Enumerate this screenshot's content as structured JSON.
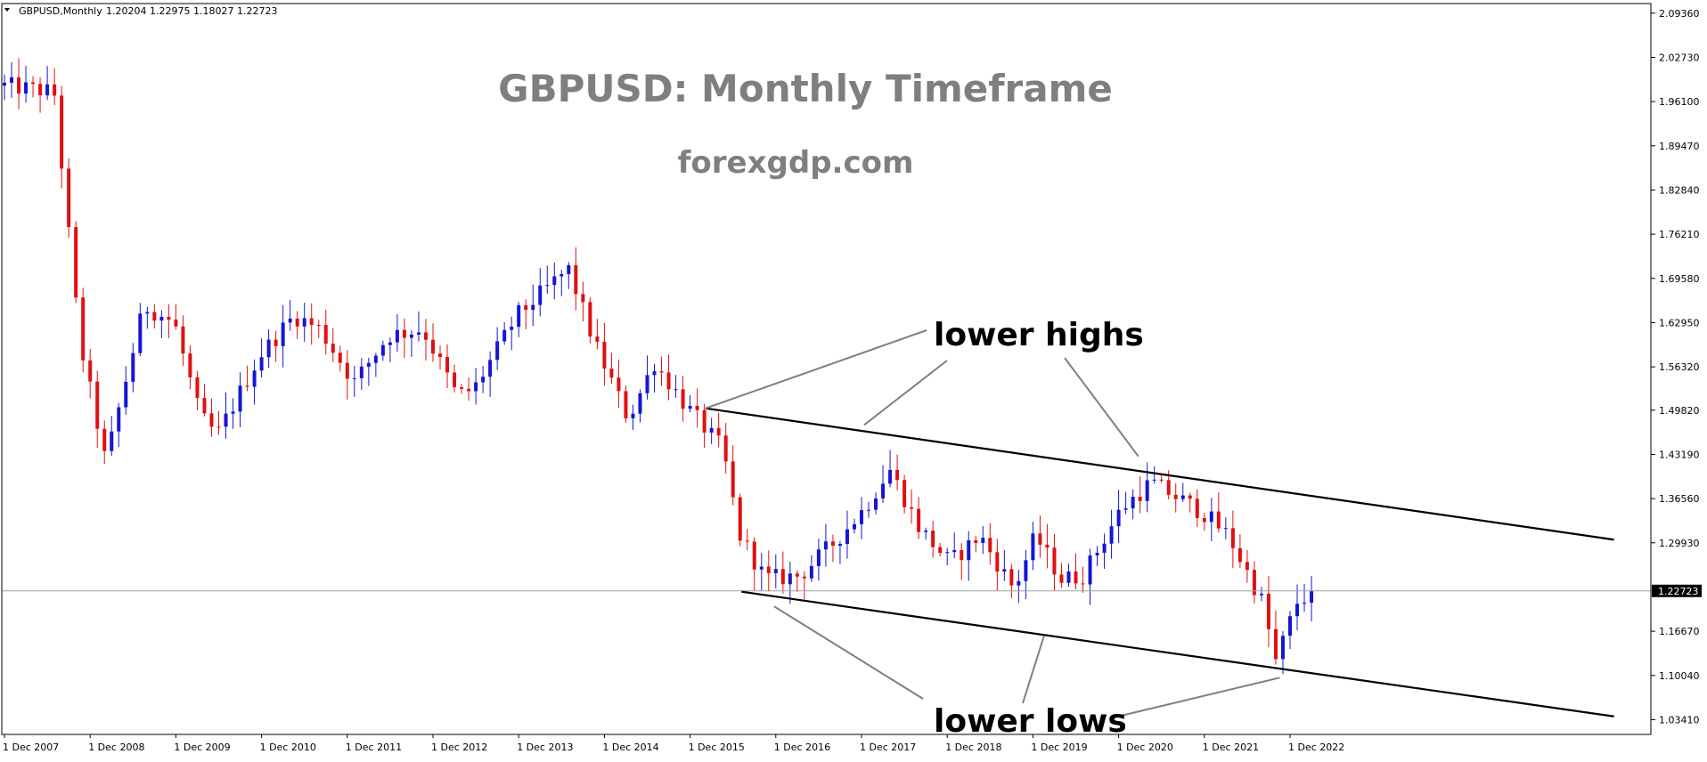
{
  "header": {
    "symbol": "GBPUSD,Monthly",
    "ohlc": "1.20204 1.22975 1.18027 1.22723",
    "menu_icon": "triangle-down-icon"
  },
  "chart_data": {
    "type": "candlestick",
    "title": "GBPUSD: Monthly Timeframe",
    "subtitle": "forexgdp.com",
    "x_tick_labels": [
      "1 Dec 2007",
      "1 Dec 2008",
      "1 Dec 2009",
      "1 Dec 2010",
      "1 Dec 2011",
      "1 Dec 2012",
      "1 Dec 2013",
      "1 Dec 2014",
      "1 Dec 2015",
      "1 Dec 2016",
      "1 Dec 2017",
      "1 Dec 2018",
      "1 Dec 2019",
      "1 Dec 2020",
      "1 Dec 2021",
      "1 Dec 2022"
    ],
    "y_tick_labels": [
      "2.09360",
      "2.02730",
      "1.96100",
      "1.89470",
      "1.82840",
      "1.76210",
      "1.69580",
      "1.62950",
      "1.56320",
      "1.49820",
      "1.43190",
      "1.36560",
      "1.29930",
      "1.22723",
      "1.16670",
      "1.10040",
      "1.03410"
    ],
    "ylim": [
      1.012,
      2.108
    ],
    "current_price": 1.22723,
    "current_price_label": "1.22723",
    "colors": {
      "bull": "#1515d6",
      "bear": "#e01010",
      "trendline": "#000000",
      "connector": "#7f7f7f",
      "price_line": "#a0a0a0",
      "title": "#7f7f7f"
    },
    "anchors": [
      {
        "t": 2007.92,
        "p": 1.985
      },
      {
        "t": 2008.5,
        "p": 1.975
      },
      {
        "t": 2008.8,
        "p": 1.6
      },
      {
        "t": 2009.1,
        "p": 1.42
      },
      {
        "t": 2009.55,
        "p": 1.655
      },
      {
        "t": 2009.9,
        "p": 1.63
      },
      {
        "t": 2010.2,
        "p": 1.49
      },
      {
        "t": 2010.4,
        "p": 1.46
      },
      {
        "t": 2010.9,
        "p": 1.58
      },
      {
        "t": 2011.3,
        "p": 1.64
      },
      {
        "t": 2011.6,
        "p": 1.62
      },
      {
        "t": 2012.0,
        "p": 1.54
      },
      {
        "t": 2012.4,
        "p": 1.61
      },
      {
        "t": 2012.8,
        "p": 1.62
      },
      {
        "t": 2013.2,
        "p": 1.52
      },
      {
        "t": 2013.4,
        "p": 1.53
      },
      {
        "t": 2013.9,
        "p": 1.64
      },
      {
        "t": 2014.5,
        "p": 1.71
      },
      {
        "t": 2014.8,
        "p": 1.6
      },
      {
        "t": 2015.2,
        "p": 1.485
      },
      {
        "t": 2015.5,
        "p": 1.57
      },
      {
        "t": 2015.9,
        "p": 1.5
      },
      {
        "t": 2016.3,
        "p": 1.44
      },
      {
        "t": 2016.5,
        "p": 1.31
      },
      {
        "t": 2016.8,
        "p": 1.245
      },
      {
        "t": 2017.2,
        "p": 1.25
      },
      {
        "t": 2017.6,
        "p": 1.3
      },
      {
        "t": 2017.95,
        "p": 1.35
      },
      {
        "t": 2018.25,
        "p": 1.41
      },
      {
        "t": 2018.6,
        "p": 1.32
      },
      {
        "t": 2018.95,
        "p": 1.27
      },
      {
        "t": 2019.3,
        "p": 1.31
      },
      {
        "t": 2019.7,
        "p": 1.23
      },
      {
        "t": 2019.95,
        "p": 1.31
      },
      {
        "t": 2020.25,
        "p": 1.245
      },
      {
        "t": 2020.5,
        "p": 1.25
      },
      {
        "t": 2020.95,
        "p": 1.35
      },
      {
        "t": 2021.3,
        "p": 1.39
      },
      {
        "t": 2021.9,
        "p": 1.345
      },
      {
        "t": 2022.2,
        "p": 1.31
      },
      {
        "t": 2022.6,
        "p": 1.21
      },
      {
        "t": 2022.75,
        "p": 1.12
      },
      {
        "t": 2023.0,
        "p": 1.21
      },
      {
        "t": 2023.2,
        "p": 1.227
      }
    ],
    "trendlines": [
      {
        "name": "upper-trendline",
        "t1": 2016.1,
        "p1": 1.501,
        "t2": 2026.7,
        "p2": 1.304
      },
      {
        "name": "lower-trendline",
        "t1": 2016.52,
        "p1": 1.226,
        "t2": 2026.7,
        "p2": 1.039
      }
    ],
    "annotations": [
      {
        "name": "lower-highs-label",
        "text": "lower highs",
        "pointers": [
          {
            "t": 2016.1,
            "p": 1.501
          },
          {
            "t": 2017.95,
            "p": 1.476
          },
          {
            "t": 2021.15,
            "p": 1.429
          }
        ]
      },
      {
        "name": "lower-lows-label",
        "text": "lower lows",
        "pointers": [
          {
            "t": 2016.9,
            "p": 1.204
          },
          {
            "t": 2020.05,
            "p": 1.16
          },
          {
            "t": 2022.8,
            "p": 1.097
          }
        ]
      }
    ]
  }
}
